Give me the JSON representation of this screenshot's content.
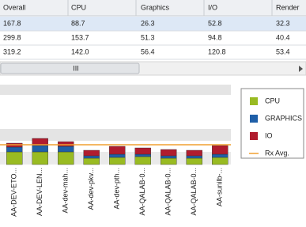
{
  "table": {
    "columns": [
      "Overall",
      "CPU",
      "Graphics",
      "I/O",
      "Render"
    ],
    "rows": [
      [
        "167.8",
        "88.7",
        "26.3",
        "52.8",
        "32.3"
      ],
      [
        "299.8",
        "153.7",
        "51.3",
        "94.8",
        "40.4"
      ],
      [
        "319.2",
        "142.0",
        "56.4",
        "120.8",
        "53.4"
      ]
    ]
  },
  "chart_data": {
    "type": "bar",
    "stacked": true,
    "categories": [
      "AA-DEV-ETO...",
      "AA-DEV-LEN...",
      "AA-dev-mah...",
      "AA-dev-pkv...",
      "AA-dev-pth...",
      "AA-QALAB-0...",
      "AA-QALAB-0...",
      "AA-QALAB-0...",
      "AA-sunilb-..."
    ],
    "series": [
      {
        "name": "CPU",
        "color": "#99bb22",
        "values": [
          16,
          16,
          16,
          8,
          9,
          10,
          8,
          8,
          9
        ]
      },
      {
        "name": "GRAPHICS",
        "color": "#1f5fa8",
        "values": [
          6,
          8,
          7,
          3,
          4,
          3,
          3,
          3,
          4
        ]
      },
      {
        "name": "IO",
        "color": "#b01c2e",
        "values": [
          5,
          9,
          6,
          7,
          10,
          8,
          8,
          7,
          11
        ]
      }
    ],
    "reference_line": {
      "name": "Rx Avg.",
      "color": "#f0a030",
      "value": 25
    },
    "ylim": [
      0,
      100
    ]
  }
}
